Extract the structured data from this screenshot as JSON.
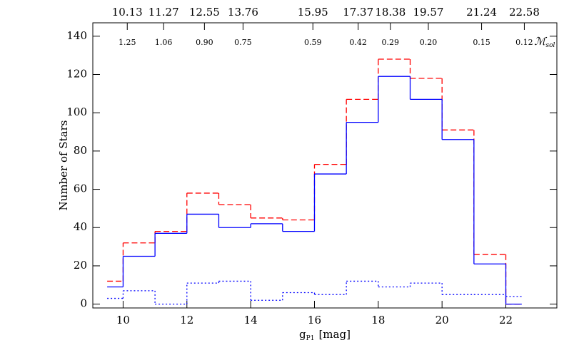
{
  "chart_data": {
    "type": "step-histogram",
    "xlabel": "g",
    "xlabel_sub": "P1",
    "xlabel_unit": "[mag]",
    "ylabel": "Number of Stars",
    "xlim": [
      9.05,
      23.6
    ],
    "xticks": [
      10,
      12,
      14,
      16,
      18,
      20,
      22
    ],
    "ylim": [
      -2,
      147
    ],
    "yticks": [
      0,
      20,
      40,
      60,
      80,
      100,
      120,
      140
    ],
    "top_ticks": [
      10.13,
      11.27,
      12.55,
      13.76,
      15.95,
      17.37,
      18.38,
      19.57,
      21.24,
      22.58
    ],
    "mass_labels": [
      "1.25",
      "1.06",
      "0.90",
      "0.75",
      "0.59",
      "0.42",
      "0.29",
      "0.20",
      "0.15",
      "0.12"
    ],
    "mass_unit": "ℳ",
    "mass_unit_sub": "sol",
    "bins": [
      9.5,
      10,
      11,
      12,
      13,
      14,
      15,
      16,
      17,
      18,
      19,
      20,
      21,
      22,
      22.5
    ],
    "series": [
      {
        "color": "#ff0000",
        "dash": "dashed",
        "values": [
          12,
          32,
          38,
          58,
          52,
          45,
          44,
          73,
          107,
          128,
          118,
          91,
          26,
          0
        ]
      },
      {
        "color": "#0000ff",
        "dash": "solid",
        "values": [
          9,
          25,
          37,
          47,
          40,
          42,
          38,
          68,
          95,
          119,
          107,
          86,
          21,
          0
        ]
      },
      {
        "color": "#0000ff",
        "dash": "dotted",
        "values": [
          3,
          7,
          0,
          11,
          12,
          2,
          6,
          5,
          12,
          9,
          11,
          5,
          5,
          4
        ]
      }
    ]
  }
}
